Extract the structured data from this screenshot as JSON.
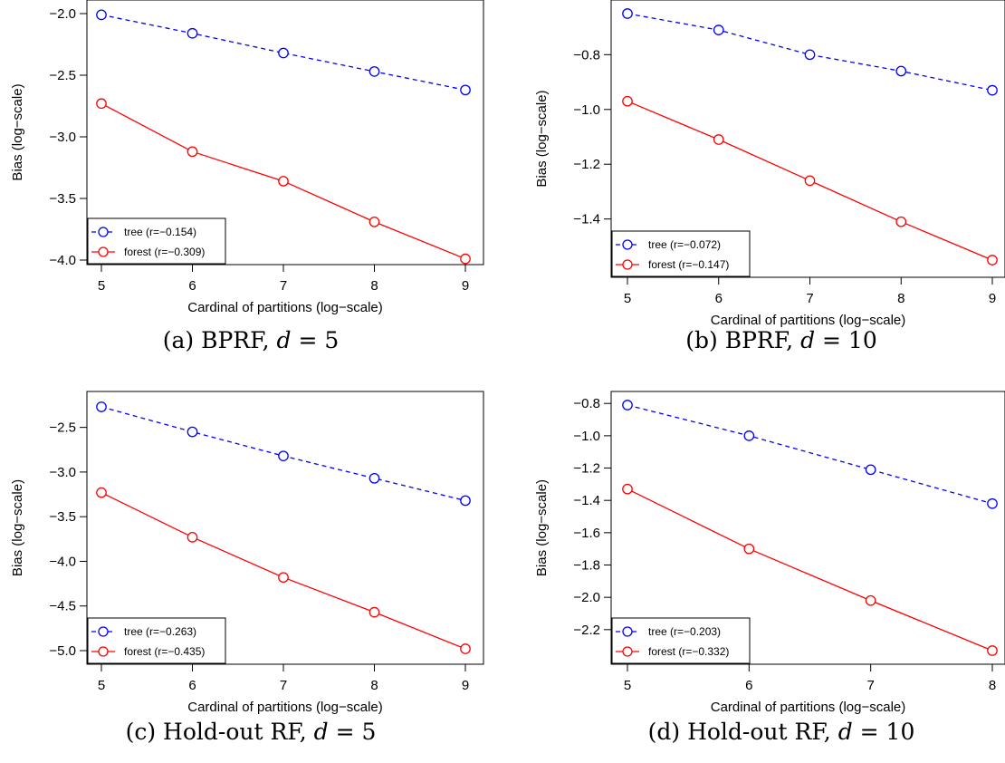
{
  "chart_data": [
    {
      "type": "line",
      "caption": {
        "prefix": "(a) BPRF, ",
        "var": "d",
        "rest": " = 5"
      },
      "xlabel": "Cardinal of partitions (log−scale)",
      "ylabel": "Bias (log−scale)",
      "x": [
        5,
        6,
        7,
        8,
        9
      ],
      "xticks": [
        "5",
        "6",
        "7",
        "8",
        "9"
      ],
      "xlim": [
        5,
        9
      ],
      "ylim": [
        -4.0,
        -2.0
      ],
      "yticks": [
        -2.0,
        -2.5,
        -3.0,
        -3.5,
        -4.0
      ],
      "yticklabels": [
        "−2.0",
        "−2.5",
        "−3.0",
        "−3.5",
        "−4.0"
      ],
      "legend_position": "bottom-left",
      "series": [
        {
          "name": "tree (r=−0.154)",
          "color": "#0000ff",
          "dash": true,
          "values": [
            -2.01,
            -2.16,
            -2.32,
            -2.47,
            -2.62
          ]
        },
        {
          "name": "forest (r=−0.309)",
          "color": "#ff0000",
          "dash": false,
          "values": [
            -2.73,
            -3.12,
            -3.36,
            -3.69,
            -3.99
          ]
        }
      ]
    },
    {
      "type": "line",
      "caption": {
        "prefix": "(b) BPRF, ",
        "var": "d",
        "rest": " = 10"
      },
      "xlabel": "Cardinal of partitions (log−scale)",
      "ylabel": "Bias (log−scale)",
      "x": [
        5,
        6,
        7,
        8,
        9
      ],
      "xticks": [
        "5",
        "6",
        "7",
        "8",
        "9"
      ],
      "xlim": [
        5,
        9
      ],
      "ylim": [
        -1.55,
        -0.65
      ],
      "yticks": [
        -0.8,
        -1.0,
        -1.2,
        -1.4
      ],
      "yticklabels": [
        "−0.8",
        "−1.0",
        "−1.2",
        "−1.4"
      ],
      "legend_position": "bottom-left",
      "series": [
        {
          "name": "tree (r=−0.072)",
          "color": "#0000ff",
          "dash": true,
          "values": [
            -0.65,
            -0.71,
            -0.8,
            -0.86,
            -0.93
          ]
        },
        {
          "name": "forest (r=−0.147)",
          "color": "#ff0000",
          "dash": false,
          "values": [
            -0.97,
            -1.11,
            -1.26,
            -1.41,
            -1.55
          ]
        }
      ]
    },
    {
      "type": "line",
      "caption": {
        "prefix": "(c) Hold-out RF, ",
        "var": "d",
        "rest": " = 5"
      },
      "xlabel": "Cardinal of partitions (log−scale)",
      "ylabel": "Bias (log−scale)",
      "x": [
        5,
        6,
        7,
        8,
        9
      ],
      "xticks": [
        "5",
        "6",
        "7",
        "8",
        "9"
      ],
      "xlim": [
        5,
        9
      ],
      "ylim": [
        -5.0,
        -2.25
      ],
      "yticks": [
        -2.5,
        -3.0,
        -3.5,
        -4.0,
        -4.5,
        -5.0
      ],
      "yticklabels": [
        "−2.5",
        "−3.0",
        "−3.5",
        "−4.0",
        "−4.5",
        "−5.0"
      ],
      "legend_position": "bottom-left",
      "series": [
        {
          "name": "tree (r=−0.263)",
          "color": "#0000ff",
          "dash": true,
          "values": [
            -2.27,
            -2.55,
            -2.82,
            -3.07,
            -3.32
          ]
        },
        {
          "name": "forest (r=−0.435)",
          "color": "#ff0000",
          "dash": false,
          "values": [
            -3.23,
            -3.73,
            -4.18,
            -4.57,
            -4.98
          ]
        }
      ]
    },
    {
      "type": "line",
      "caption": {
        "prefix": "(d) Hold-out RF, ",
        "var": "d",
        "rest": " = 10"
      },
      "xlabel": "Cardinal of partitions (log−scale)",
      "ylabel": "Bias (log−scale)",
      "x": [
        5,
        6,
        7,
        8
      ],
      "xticks": [
        "5",
        "6",
        "7",
        "8"
      ],
      "xlim": [
        5,
        8
      ],
      "ylim": [
        -2.33,
        -0.81
      ],
      "yticks": [
        -0.8,
        -1.0,
        -1.2,
        -1.4,
        -1.6,
        -1.8,
        -2.0,
        -2.2
      ],
      "yticklabels": [
        "−0.8",
        "−1.0",
        "−1.2",
        "−1.4",
        "−1.6",
        "−1.8",
        "−2.0",
        "−2.2"
      ],
      "legend_position": "bottom-left",
      "series": [
        {
          "name": "tree (r=−0.203)",
          "color": "#0000ff",
          "dash": true,
          "values": [
            -0.81,
            -1.0,
            -1.21,
            -1.42
          ]
        },
        {
          "name": "forest (r=−0.332)",
          "color": "#ff0000",
          "dash": false,
          "values": [
            -1.33,
            -1.7,
            -2.02,
            -2.33
          ]
        }
      ]
    }
  ]
}
